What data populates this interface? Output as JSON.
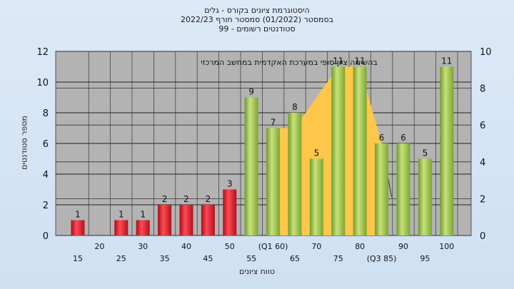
{
  "header": {
    "title_line1": "היסטוגרמת ציונים בקורס - גלים",
    "title_line2": "בסמסטר  (01/2022)  סמסטר חורף  2022/23",
    "title_line3": "סטודנטים רשומים - 99"
  },
  "chart_data": {
    "type": "bar",
    "xlabel": "טווח ציונים",
    "ylabel": "מספר סטודנטים",
    "annotation": "בהשימה  ציון סופי במערכת האקדמית במחשב המרכזי",
    "ylim": [
      0,
      12
    ],
    "y_ticks": [
      0,
      2,
      4,
      6,
      8,
      10,
      12
    ],
    "y2lim": [
      0,
      10
    ],
    "y2_ticks": [
      0,
      2,
      4,
      6,
      8,
      10
    ],
    "grid": true,
    "tick_labels": [
      {
        "label": "15",
        "row": 2
      },
      {
        "label": "20",
        "row": 1
      },
      {
        "label": "25",
        "row": 2
      },
      {
        "label": "30",
        "row": 1
      },
      {
        "label": "35",
        "row": 2
      },
      {
        "label": "40",
        "row": 1
      },
      {
        "label": "45",
        "row": 2
      },
      {
        "label": "50",
        "row": 1
      },
      {
        "label": "55",
        "row": 2
      },
      {
        "label": "(Q1 60)",
        "row": 1
      },
      {
        "label": "65",
        "row": 2
      },
      {
        "label": "70",
        "row": 1
      },
      {
        "label": "75",
        "row": 2
      },
      {
        "label": "80",
        "row": 1
      },
      {
        "label": "(Q3 85)",
        "row": 2
      },
      {
        "label": "90",
        "row": 1
      },
      {
        "label": "95",
        "row": 2
      },
      {
        "label": "100",
        "row": 1
      }
    ],
    "bars": [
      {
        "label": "15",
        "value": 1,
        "color": "red"
      },
      {
        "label": "20",
        "value": 0,
        "color": "red"
      },
      {
        "label": "25",
        "value": 1,
        "color": "red"
      },
      {
        "label": "30",
        "value": 1,
        "color": "red"
      },
      {
        "label": "35",
        "value": 2,
        "color": "red"
      },
      {
        "label": "40",
        "value": 2,
        "color": "red"
      },
      {
        "label": "45",
        "value": 2,
        "color": "red"
      },
      {
        "label": "50",
        "value": 3,
        "color": "red"
      },
      {
        "label": "55",
        "value": 9,
        "color": "green"
      },
      {
        "label": "60",
        "value": 7,
        "color": "green"
      },
      {
        "label": "65",
        "value": 8,
        "color": "green"
      },
      {
        "label": "70",
        "value": 5,
        "color": "green"
      },
      {
        "label": "75",
        "value": 11,
        "color": "green"
      },
      {
        "label": "80",
        "value": 11,
        "color": "green"
      },
      {
        "label": "85",
        "value": 6,
        "color": "green"
      },
      {
        "label": "90",
        "value": 6,
        "color": "green"
      },
      {
        "label": "95",
        "value": 5,
        "color": "green"
      },
      {
        "label": "100",
        "value": 11,
        "color": "green"
      }
    ],
    "band_area": [
      {
        "x": 60,
        "y": 7
      },
      {
        "x": 65,
        "y": 7
      },
      {
        "x": 75,
        "y": 11
      },
      {
        "x": 80,
        "y": 11
      },
      {
        "x": 85,
        "y": 6
      }
    ],
    "colors": {
      "plot_bg": "#b3b3b3",
      "band": "#ffc74a",
      "red_bar": "#e01f2c",
      "green_bar": "#9cc64a"
    }
  }
}
